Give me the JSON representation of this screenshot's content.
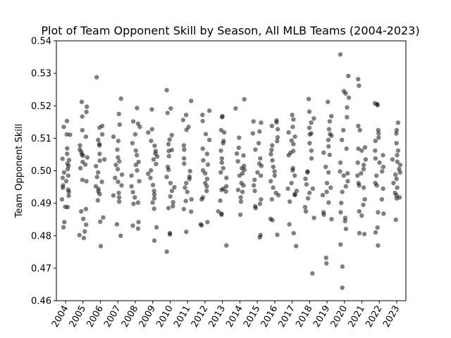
{
  "chart_data": {
    "type": "scatter",
    "title": "Plot of Team Opponent Skill by Season, All MLB Teams (2004-2023)",
    "xlabel": "",
    "ylabel": "Team Opponent Skill",
    "ylim": [
      0.46,
      0.54
    ],
    "yticks": [
      "0.46",
      "0.47",
      "0.48",
      "0.49",
      "0.50",
      "0.51",
      "0.52",
      "0.53",
      "0.54"
    ],
    "categories": [
      "2004",
      "2005",
      "2006",
      "2007",
      "2008",
      "2009",
      "2010",
      "2011",
      "2012",
      "2013",
      "2014",
      "2015",
      "2016",
      "2017",
      "2018",
      "2019",
      "2020",
      "2021",
      "2022",
      "2023"
    ],
    "point_color": "#000000",
    "point_opacity": 0.5,
    "grid": false,
    "series": [
      {
        "values": {
          "2004": [
            0.5153,
            0.5135,
            0.5112,
            0.5111,
            0.5069,
            0.5052,
            0.5037,
            0.5033,
            0.5022,
            0.5015,
            0.5005,
            0.4995,
            0.4985,
            0.4978,
            0.4968,
            0.4955,
            0.4948,
            0.4942,
            0.4935,
            0.4923,
            0.4912,
            0.4889,
            0.4888,
            0.4842,
            0.4826
          ],
          "2005": [
            0.5212,
            0.5197,
            0.5181,
            0.5167,
            0.5125,
            0.5105,
            0.5078,
            0.5065,
            0.5058,
            0.505,
            0.5047,
            0.5041,
            0.5027,
            0.5019,
            0.5008,
            0.4972,
            0.4968,
            0.4882,
            0.4875,
            0.4852,
            0.4834,
            0.4813,
            0.4802,
            0.4793
          ],
          "2006": [
            0.5288,
            0.5138,
            0.5133,
            0.5112,
            0.5095,
            0.5082,
            0.5078,
            0.5052,
            0.5035,
            0.5031,
            0.5014,
            0.4995,
            0.4981,
            0.4966,
            0.4952,
            0.4944,
            0.4936,
            0.4928,
            0.4909,
            0.4856,
            0.4843,
            0.4768
          ],
          "2007": [
            0.5222,
            0.5175,
            0.5142,
            0.5105,
            0.5092,
            0.5065,
            0.5041,
            0.5029,
            0.5018,
            0.5005,
            0.4988,
            0.4978,
            0.4966,
            0.4955,
            0.4932,
            0.4924,
            0.4918,
            0.4905,
            0.4835,
            0.48
          ],
          "2008": [
            0.5193,
            0.5152,
            0.5145,
            0.5135,
            0.5112,
            0.5085,
            0.5062,
            0.5048,
            0.5027,
            0.5018,
            0.5001,
            0.4985,
            0.4968,
            0.4952,
            0.4934,
            0.4918,
            0.4902,
            0.4898,
            0.4842,
            0.4831,
            0.4822
          ],
          "2009": [
            0.5189,
            0.5128,
            0.5118,
            0.5092,
            0.5077,
            0.5061,
            0.5053,
            0.5044,
            0.5035,
            0.5021,
            0.5001,
            0.4991,
            0.4978,
            0.4956,
            0.4938,
            0.4927,
            0.4915,
            0.4902,
            0.4883,
            0.4826,
            0.4785
          ],
          "2010": [
            0.5248,
            0.5192,
            0.5178,
            0.511,
            0.5096,
            0.5082,
            0.5064,
            0.5061,
            0.5045,
            0.5012,
            0.5003,
            0.4981,
            0.4962,
            0.4949,
            0.4938,
            0.4921,
            0.4903,
            0.4891,
            0.4885,
            0.4808,
            0.4804,
            0.4751
          ],
          "2011": [
            0.5215,
            0.5172,
            0.5156,
            0.5135,
            0.5126,
            0.5078,
            0.5065,
            0.5038,
            0.5022,
            0.4999,
            0.4982,
            0.4975,
            0.4962,
            0.4948,
            0.4935,
            0.4912,
            0.4907,
            0.4882,
            0.4874,
            0.4812
          ],
          "2012": [
            0.5185,
            0.5172,
            0.5153,
            0.5113,
            0.5095,
            0.5068,
            0.5052,
            0.5032,
            0.5019,
            0.5001,
            0.4992,
            0.4975,
            0.4962,
            0.4952,
            0.4938,
            0.4918,
            0.4912,
            0.4842,
            0.4835,
            0.4832
          ],
          "2013": [
            0.5168,
            0.5165,
            0.5125,
            0.5118,
            0.5092,
            0.5085,
            0.5062,
            0.5038,
            0.5025,
            0.5008,
            0.4995,
            0.4978,
            0.4952,
            0.4945,
            0.4941,
            0.4936,
            0.4908,
            0.4875,
            0.4868,
            0.4865,
            0.477
          ],
          "2014": [
            0.522,
            0.5192,
            0.5102,
            0.5071,
            0.5053,
            0.5047,
            0.5029,
            0.5015,
            0.5008,
            0.5003,
            0.4992,
            0.4985,
            0.4962,
            0.4955,
            0.4941,
            0.4935,
            0.4918,
            0.4905,
            0.4865
          ],
          "2015": [
            0.5152,
            0.5148,
            0.5121,
            0.5115,
            0.5085,
            0.5065,
            0.5038,
            0.5022,
            0.5015,
            0.4995,
            0.4985,
            0.4972,
            0.4955,
            0.4938,
            0.4912,
            0.4898,
            0.4891,
            0.4885,
            0.4802,
            0.4795
          ],
          "2016": [
            0.5155,
            0.5149,
            0.5138,
            0.5128,
            0.5103,
            0.5091,
            0.5078,
            0.5064,
            0.5051,
            0.5032,
            0.5012,
            0.4998,
            0.4985,
            0.4968,
            0.4948,
            0.4932,
            0.4925,
            0.4912,
            0.4852,
            0.4848,
            0.4803
          ],
          "2017": [
            0.5172,
            0.5158,
            0.5135,
            0.5118,
            0.5105,
            0.5093,
            0.5082,
            0.5061,
            0.5055,
            0.5048,
            0.5008,
            0.5001,
            0.4985,
            0.4962,
            0.4945,
            0.4938,
            0.4928,
            0.4925,
            0.4905,
            0.4835,
            0.4808,
            0.4768
          ],
          "2018": [
            0.5221,
            0.5182,
            0.5161,
            0.5148,
            0.5132,
            0.5115,
            0.5112,
            0.5085,
            0.5062,
            0.5038,
            0.4998,
            0.4995,
            0.4975,
            0.4958,
            0.4945,
            0.4932,
            0.4915,
            0.4888,
            0.4875,
            0.4855,
            0.4684
          ],
          "2019": [
            0.5212,
            0.5168,
            0.5152,
            0.5128,
            0.5113,
            0.5108,
            0.5095,
            0.5075,
            0.5056,
            0.5049,
            0.5012,
            0.4995,
            0.4962,
            0.4948,
            0.4935,
            0.4925,
            0.4902,
            0.4872,
            0.4865,
            0.4851,
            0.4732,
            0.4715
          ],
          "2020": [
            0.5358,
            0.5292,
            0.5245,
            0.5238,
            0.5225,
            0.5195,
            0.5165,
            0.5125,
            0.5095,
            0.5068,
            0.5025,
            0.4998,
            0.4992,
            0.4985,
            0.4968,
            0.4952,
            0.4935,
            0.4901,
            0.4872,
            0.4855,
            0.4845,
            0.4821,
            0.4773,
            0.4705,
            0.464
          ],
          "2021": [
            0.5282,
            0.5262,
            0.5138,
            0.5125,
            0.5072,
            0.5068,
            0.5062,
            0.5035,
            0.5025,
            0.5018,
            0.5005,
            0.4992,
            0.4985,
            0.4962,
            0.4955,
            0.4948,
            0.4912,
            0.4895,
            0.4875,
            0.4862,
            0.4808,
            0.4805
          ],
          "2022": [
            0.5208,
            0.5205,
            0.5202,
            0.5125,
            0.5115,
            0.5102,
            0.5092,
            0.5062,
            0.5048,
            0.5038,
            0.5025,
            0.5012,
            0.4998,
            0.4985,
            0.4962,
            0.4955,
            0.4945,
            0.4912,
            0.4872,
            0.4868,
            0.4825,
            0.481,
            0.477
          ],
          "2023": [
            0.5148,
            0.5125,
            0.5115,
            0.5085,
            0.5062,
            0.5048,
            0.5035,
            0.5028,
            0.5018,
            0.5005,
            0.4995,
            0.4988,
            0.4975,
            0.4962,
            0.4948,
            0.4932,
            0.4925,
            0.4918,
            0.4915,
            0.4849
          ]
        }
      }
    ]
  }
}
